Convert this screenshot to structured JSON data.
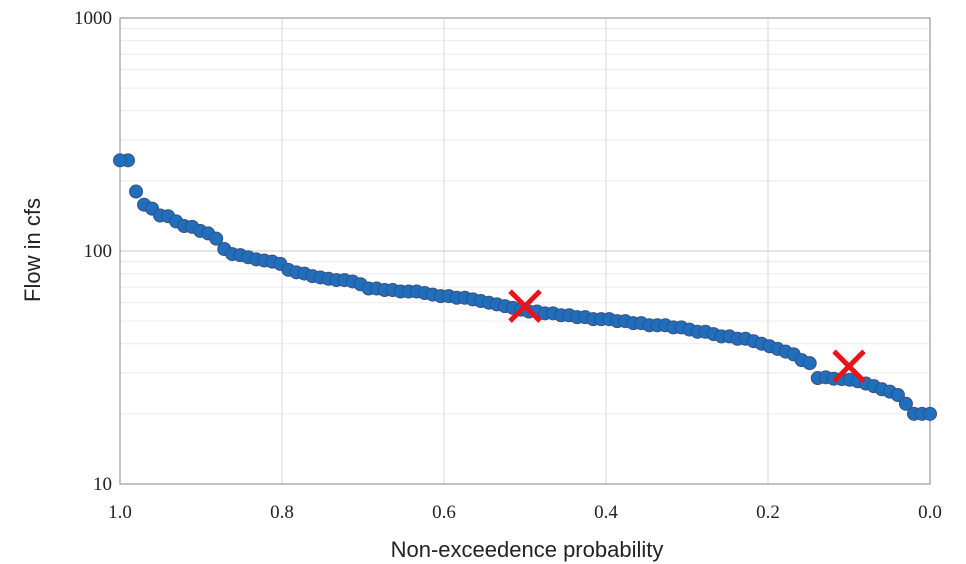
{
  "chart_data": {
    "type": "scatter",
    "xlabel": "Non-exceedence probability",
    "ylabel": "Flow in cfs",
    "x_reversed": true,
    "xlim": [
      0.0,
      1.0
    ],
    "ylim": [
      10,
      1000
    ],
    "y_scale": "log",
    "grid": true,
    "x_ticks": [
      "1.0",
      "0.8",
      "0.6",
      "0.4",
      "0.2",
      "0.0"
    ],
    "y_ticks": [
      "1000",
      "100",
      "10"
    ],
    "colors": {
      "marker_fill": "#1f6fbf",
      "marker_edge": "#3d4f7a",
      "highlight": "#e8141b",
      "grid": "#d9d9d9",
      "axis": "#9a9a9a"
    },
    "series": [
      {
        "x": [
          0.9901,
          0.9802,
          0.9703,
          0.9604,
          0.9505,
          0.9406,
          0.9307,
          0.9208,
          0.9109,
          0.901,
          0.8911,
          0.8812,
          0.8713,
          0.8614,
          0.8515,
          0.8416,
          0.8317,
          0.8218,
          0.8119,
          0.802,
          0.7921,
          0.7822,
          0.7723,
          0.7624,
          0.7525,
          0.7426,
          0.7327,
          0.7228,
          0.7129,
          0.703,
          0.6931,
          0.6832,
          0.6733,
          0.6634,
          0.6535,
          0.6436,
          0.6337,
          0.6238,
          0.6139,
          0.604,
          0.5941,
          0.5842,
          0.5743,
          0.5644,
          0.5545,
          0.5446,
          0.5347,
          0.5248,
          0.5149,
          0.505,
          0.4951,
          0.4852,
          0.4753,
          0.4654,
          0.4554,
          0.4455,
          0.4356,
          0.4257,
          0.4158,
          0.4059,
          0.396,
          0.3861,
          0.3762,
          0.3663,
          0.3564,
          0.3465,
          0.3366,
          0.3267,
          0.3168,
          0.3069,
          0.297,
          0.2871,
          0.2772,
          0.2673,
          0.2574,
          0.2475,
          0.2376,
          0.2277,
          0.2178,
          0.2079,
          0.198,
          0.1881,
          0.1782,
          0.1683,
          0.1584,
          0.1485,
          0.1386,
          0.1287,
          0.1188,
          0.1089,
          0.099,
          0.0891,
          0.0792,
          0.0693,
          0.0594,
          0.0495,
          0.0396,
          0.0297,
          0.0198,
          0.0099,
          0.0
        ],
        "y": [
          245,
          180,
          158,
          152,
          142,
          141,
          134,
          128,
          127,
          122,
          119,
          113,
          102,
          97,
          96,
          94,
          92,
          91,
          90,
          88,
          83,
          81,
          80,
          78,
          77,
          76,
          75,
          75,
          74,
          72,
          69,
          69,
          68,
          68,
          67,
          67,
          67,
          66,
          65,
          64,
          64,
          63,
          63,
          62,
          61,
          60,
          59,
          58,
          57,
          56,
          55,
          55,
          54,
          54,
          53,
          53,
          52,
          52,
          51,
          51,
          51,
          50,
          50,
          49,
          49,
          48,
          48,
          48,
          47,
          47,
          46,
          45,
          45,
          44,
          43,
          43,
          42,
          42,
          41,
          40,
          39,
          38,
          37,
          36,
          34,
          33,
          28.5,
          28.7,
          28.3,
          28.2,
          28.0,
          27.6,
          27,
          26.3,
          25.5,
          24.9,
          24.1,
          22.1,
          20,
          20,
          20
        ]
      },
      {
        "x": [
          0.5,
          0.1
        ],
        "y": [
          58,
          32
        ]
      }
    ]
  }
}
